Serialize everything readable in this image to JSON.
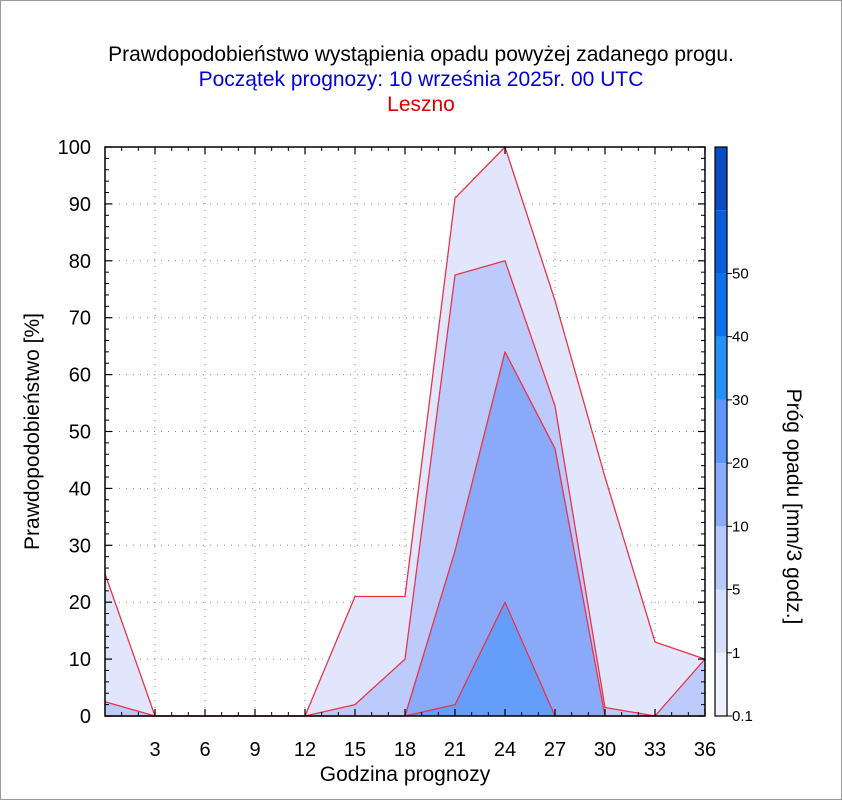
{
  "chart_data": {
    "type": "area",
    "title": "Prawdopodobieństwo wystąpienia opadu powyżej zadanego progu.",
    "subtitle": "Początek prognozy: 10 września 2025r. 00 UTC",
    "location": "Leszno",
    "xlabel": "Godzina prognozy",
    "ylabel": "Prawdopodobieństwo [%]",
    "colorbar_label": "Próg opadu [mm/3 godz.]",
    "xlim": [
      0,
      36
    ],
    "ylim": [
      0,
      100
    ],
    "x": [
      0,
      3,
      6,
      9,
      12,
      15,
      18,
      21,
      24,
      27,
      30,
      33,
      36
    ],
    "x_ticks": [
      3,
      6,
      9,
      12,
      15,
      18,
      21,
      24,
      27,
      30,
      33,
      36
    ],
    "y_ticks": [
      0,
      10,
      20,
      30,
      40,
      50,
      60,
      70,
      80,
      90,
      100
    ],
    "grid": true,
    "series": [
      {
        "threshold": 0.1,
        "color": "#e1e6fd",
        "values": [
          25,
          0,
          0,
          0,
          0,
          21,
          21,
          91,
          100,
          73,
          42,
          13,
          10
        ]
      },
      {
        "threshold": 1,
        "color": "#bccbfb",
        "values": [
          2.5,
          0,
          0,
          0,
          0,
          2,
          10,
          77.5,
          80,
          54.5,
          1.5,
          0,
          10
        ]
      },
      {
        "threshold": 5,
        "color": "#8aaaf9",
        "values": [
          0,
          0,
          0,
          0,
          0,
          0,
          0,
          29,
          64,
          47,
          0,
          0,
          0
        ]
      },
      {
        "threshold": 10,
        "color": "#659dfa",
        "values": [
          0,
          0,
          0,
          0,
          0,
          0,
          0,
          2,
          20,
          0,
          0,
          0,
          0
        ]
      }
    ],
    "line_color": "#e8344a",
    "colorbar": {
      "tick_labels": [
        "0.1",
        "1",
        "5",
        "10",
        "20",
        "30",
        "40",
        "50"
      ],
      "colors": [
        "#eef0fe",
        "#d6defc",
        "#b7c8fb",
        "#8aabf9",
        "#5e97f7",
        "#2591f5",
        "#0d72ea",
        "#0b5ed9",
        "#0a4cc4"
      ]
    }
  }
}
